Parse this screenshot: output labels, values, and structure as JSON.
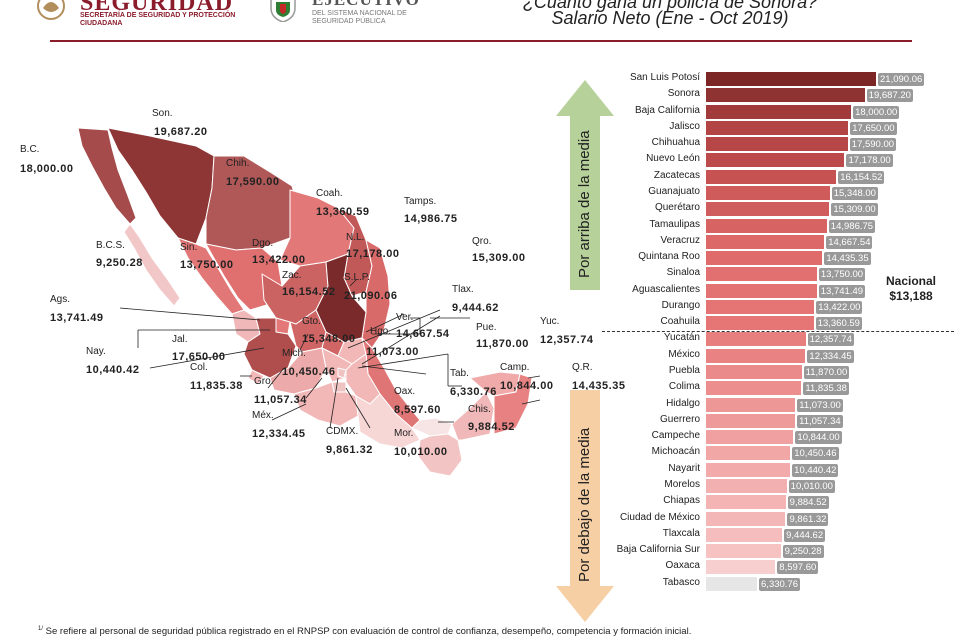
{
  "header": {
    "logo1_text": "SEGURIDAD",
    "logo1_sub": "SECRETARÍA DE SEGURIDAD Y PROTECCIÓN CIUDADANA",
    "logo2_text": "EJECUTIVO",
    "logo2_sub": "DEL SISTEMA NACIONAL DE SEGURIDAD PÚBLICA",
    "title_line1": "¿Cuánto gana un policía de Sonora?",
    "title_line2": "Salario Neto (Ene - Oct 2019)"
  },
  "colors": {
    "brand": "#8b1c2c",
    "arrow_up": "#b7d19a",
    "arrow_down": "#f7cfa5",
    "value_chip": "#999999"
  },
  "arrows": {
    "up_label": "Por arriba de la media",
    "down_label": "Por debajo de la media"
  },
  "nacional": {
    "label": "Nacional",
    "value": "$13,188"
  },
  "map_labels": [
    {
      "abbr": "Son.",
      "value": "19,687.20"
    },
    {
      "abbr": "B.C.",
      "value": "18,000.00"
    },
    {
      "abbr": "Chih.",
      "value": "17,590.00"
    },
    {
      "abbr": "Coah.",
      "value": "13,360.59"
    },
    {
      "abbr": "Tamps.",
      "value": "14,986.75"
    },
    {
      "abbr": "N.L.",
      "value": "17,178.00"
    },
    {
      "abbr": "Qro.",
      "value": "15,309.00"
    },
    {
      "abbr": "B.C.S.",
      "value": "9,250.28"
    },
    {
      "abbr": "Sin.",
      "value": "13,750.00"
    },
    {
      "abbr": "Dgo.",
      "value": "13,422.00"
    },
    {
      "abbr": "Zac.",
      "value": "16,154.52"
    },
    {
      "abbr": "S.L.P.",
      "value": "21,090.06"
    },
    {
      "abbr": "Tlax.",
      "value": "9,444.62"
    },
    {
      "abbr": "Ags.",
      "value": "13,741.49"
    },
    {
      "abbr": "Gto.",
      "value": "15,348.00"
    },
    {
      "abbr": "Ver.",
      "value": "14,667.54"
    },
    {
      "abbr": "Hgo.",
      "value": "11,073.00"
    },
    {
      "abbr": "Pue.",
      "value": "11,870.00"
    },
    {
      "abbr": "Yuc.",
      "value": "12,357.74"
    },
    {
      "abbr": "Jal.",
      "value": "17,650.00"
    },
    {
      "abbr": "Nay.",
      "value": "10,440.42"
    },
    {
      "abbr": "Mich.",
      "value": "10,450.46"
    },
    {
      "abbr": "Col.",
      "value": "11,835.38"
    },
    {
      "abbr": "Camp.",
      "value": "10,844.00"
    },
    {
      "abbr": "Q.R.",
      "value": "14,435.35"
    },
    {
      "abbr": "Tab.",
      "value": "6,330.76"
    },
    {
      "abbr": "Gro.",
      "value": "11,057.34"
    },
    {
      "abbr": "Oax.",
      "value": "8,597.60"
    },
    {
      "abbr": "Chis.",
      "value": "9,884.52"
    },
    {
      "abbr": "Méx.",
      "value": "12,334.45"
    },
    {
      "abbr": "CDMX.",
      "value": "9,861.32"
    },
    {
      "abbr": "Mor.",
      "value": "10,010.00"
    }
  ],
  "chart_data": {
    "type": "bar",
    "title": "Salario Neto (Ene - Oct 2019)",
    "xlabel": "",
    "ylabel": "",
    "orientation": "horizontal",
    "xlim": [
      0,
      21090.06
    ],
    "categories": [
      "San Luis Potosí",
      "Sonora",
      "Baja California",
      "Jalisco",
      "Chihuahua",
      "Nuevo León",
      "Zacatecas",
      "Guanajuato",
      "Querétaro",
      "Tamaulipas",
      "Veracruz",
      "Quintana Roo",
      "Sinaloa",
      "Aguascalientes",
      "Durango",
      "Coahuila",
      "Yucatán",
      "México",
      "Puebla",
      "Colima",
      "Hidalgo",
      "Guerrero",
      "Campeche",
      "Michoacán",
      "Nayarit",
      "Morelos",
      "Chiapas",
      "Ciudad de México",
      "Tlaxcala",
      "Baja California Sur",
      "Oaxaca",
      "Tabasco"
    ],
    "values": [
      21090.06,
      19687.2,
      18000.0,
      17650.0,
      17590.0,
      17178.0,
      16154.52,
      15348.0,
      15309.0,
      14986.75,
      14667.54,
      14435.35,
      13750.0,
      13741.49,
      13422.0,
      13360.59,
      12357.74,
      12334.45,
      11870.0,
      11835.38,
      11073.0,
      11057.34,
      10844.0,
      10450.46,
      10440.42,
      10010.0,
      9884.52,
      9861.32,
      9444.62,
      9250.28,
      8597.6,
      6330.76
    ],
    "value_labels": [
      "21,090.06",
      "19,687.20",
      "18,000.00",
      "17,650.00",
      "17,590.00",
      "17,178.00",
      "16,154.52",
      "15,348.00",
      "15,309.00",
      "14,986.75",
      "14,667.54",
      "14,435.35",
      "13,750.00",
      "13,741.49",
      "13,422.00",
      "13,360.59",
      "12,357.74",
      "12,334.45",
      "11,870.00",
      "11,835.38",
      "11,073.00",
      "11,057.34",
      "10,844.00",
      "10,450.46",
      "10,440.42",
      "10,010.00",
      "9,884.52",
      "9,861.32",
      "9,444.62",
      "9,250.28",
      "8,597.60",
      "6,330.76"
    ],
    "reference_line": {
      "label": "Nacional",
      "value": 13188
    }
  },
  "footnote": {
    "marker": "1/",
    "text": " Se refiere al personal de seguridad pública registrado en el RNPSP  con evaluación de control de confianza, desempeño, competencia y formación inicial."
  }
}
